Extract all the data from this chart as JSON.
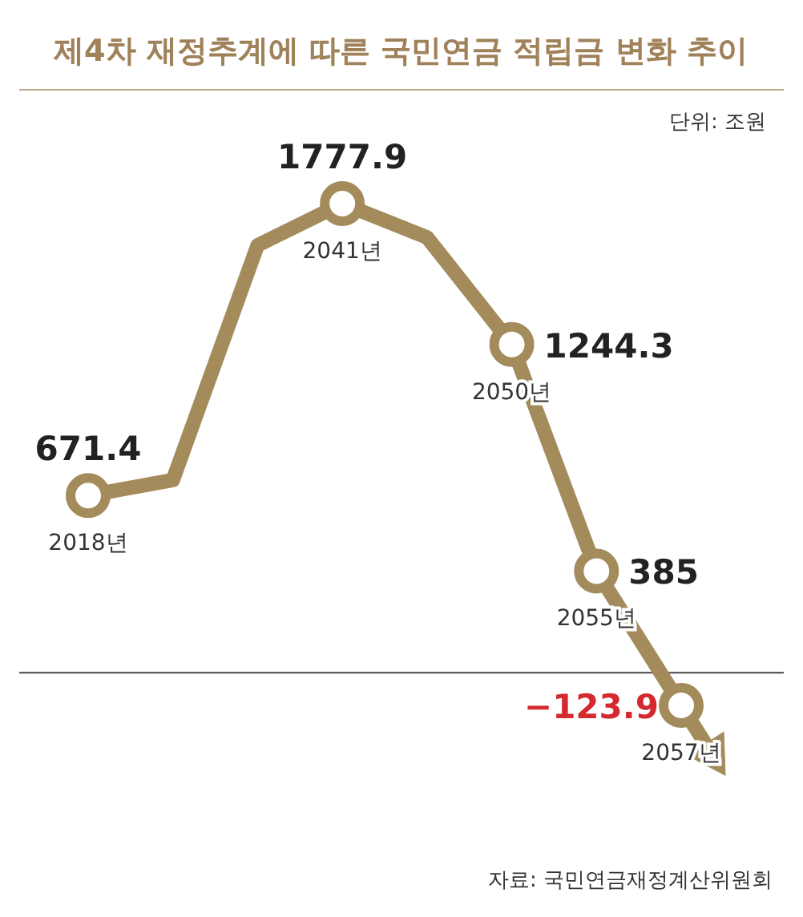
{
  "chart_data": {
    "type": "line",
    "title": "제4차 재정추계에 따른 국민연금 적립금 변화 추이",
    "categories": [
      "2018년",
      null,
      null,
      "2041년",
      null,
      "2050년",
      "2055년",
      "2057년"
    ],
    "series": [
      {
        "color": "#a38b5c",
        "values": [
          671.4,
          730,
          1620,
          1777.9,
          1650,
          1244.3,
          385,
          -123.9
        ],
        "value_labels": [
          "671.4",
          null,
          null,
          "1777.9",
          null,
          "1244.3",
          "385",
          "−123.9"
        ]
      }
    ],
    "marker": "circle",
    "ref_lines": [
      {
        "axis": "y",
        "value": 0,
        "color": "#444444"
      }
    ],
    "annotations": [
      "단위: 조원",
      "자료: 국민연금재정계산위원회"
    ]
  }
}
